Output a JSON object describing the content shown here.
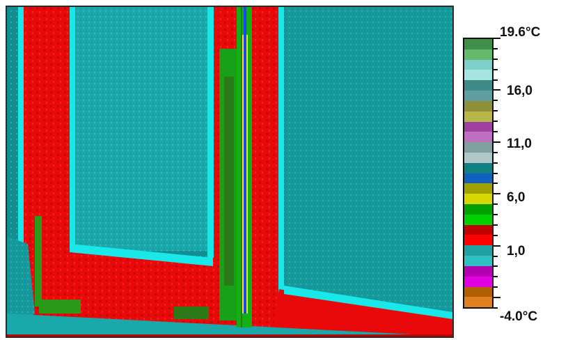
{
  "image": {
    "subject": "thermal image of window frame",
    "palette": {
      "cold_teal_dark": "#0f8f93",
      "cold_teal": "#17a6a8",
      "cold_cyan": "#4cd6d6",
      "edge_cyan": "#18f0f0",
      "frame_red": "#ff1010",
      "frame_dark_red": "#c00000",
      "warm_green": "#12b012",
      "warm_dark_green": "#2a7a1a",
      "hot_yellow": "#e8e820",
      "hot_blue": "#1a44ff"
    }
  },
  "scale": {
    "max_label": "19.6°C",
    "label_16": "16,0",
    "label_11": "11,0",
    "label_6": "6,0",
    "label_1": "1,0",
    "min_label": "-4.0°C",
    "colors": [
      "#3f8f4a",
      "#66b86a",
      "#7fd0c8",
      "#a6e6e0",
      "#3e8a8a",
      "#5f9f9f",
      "#8f8f3a",
      "#b8b84a",
      "#a040a0",
      "#c070c0",
      "#7fa0a0",
      "#b0c8c8",
      "#108080",
      "#1060c0",
      "#a0a000",
      "#d8d800",
      "#00a000",
      "#00d000",
      "#c00000",
      "#ff0000",
      "#20a0a0",
      "#30c0c0",
      "#b000b0",
      "#e000e0",
      "#b06000",
      "#e08020"
    ]
  }
}
